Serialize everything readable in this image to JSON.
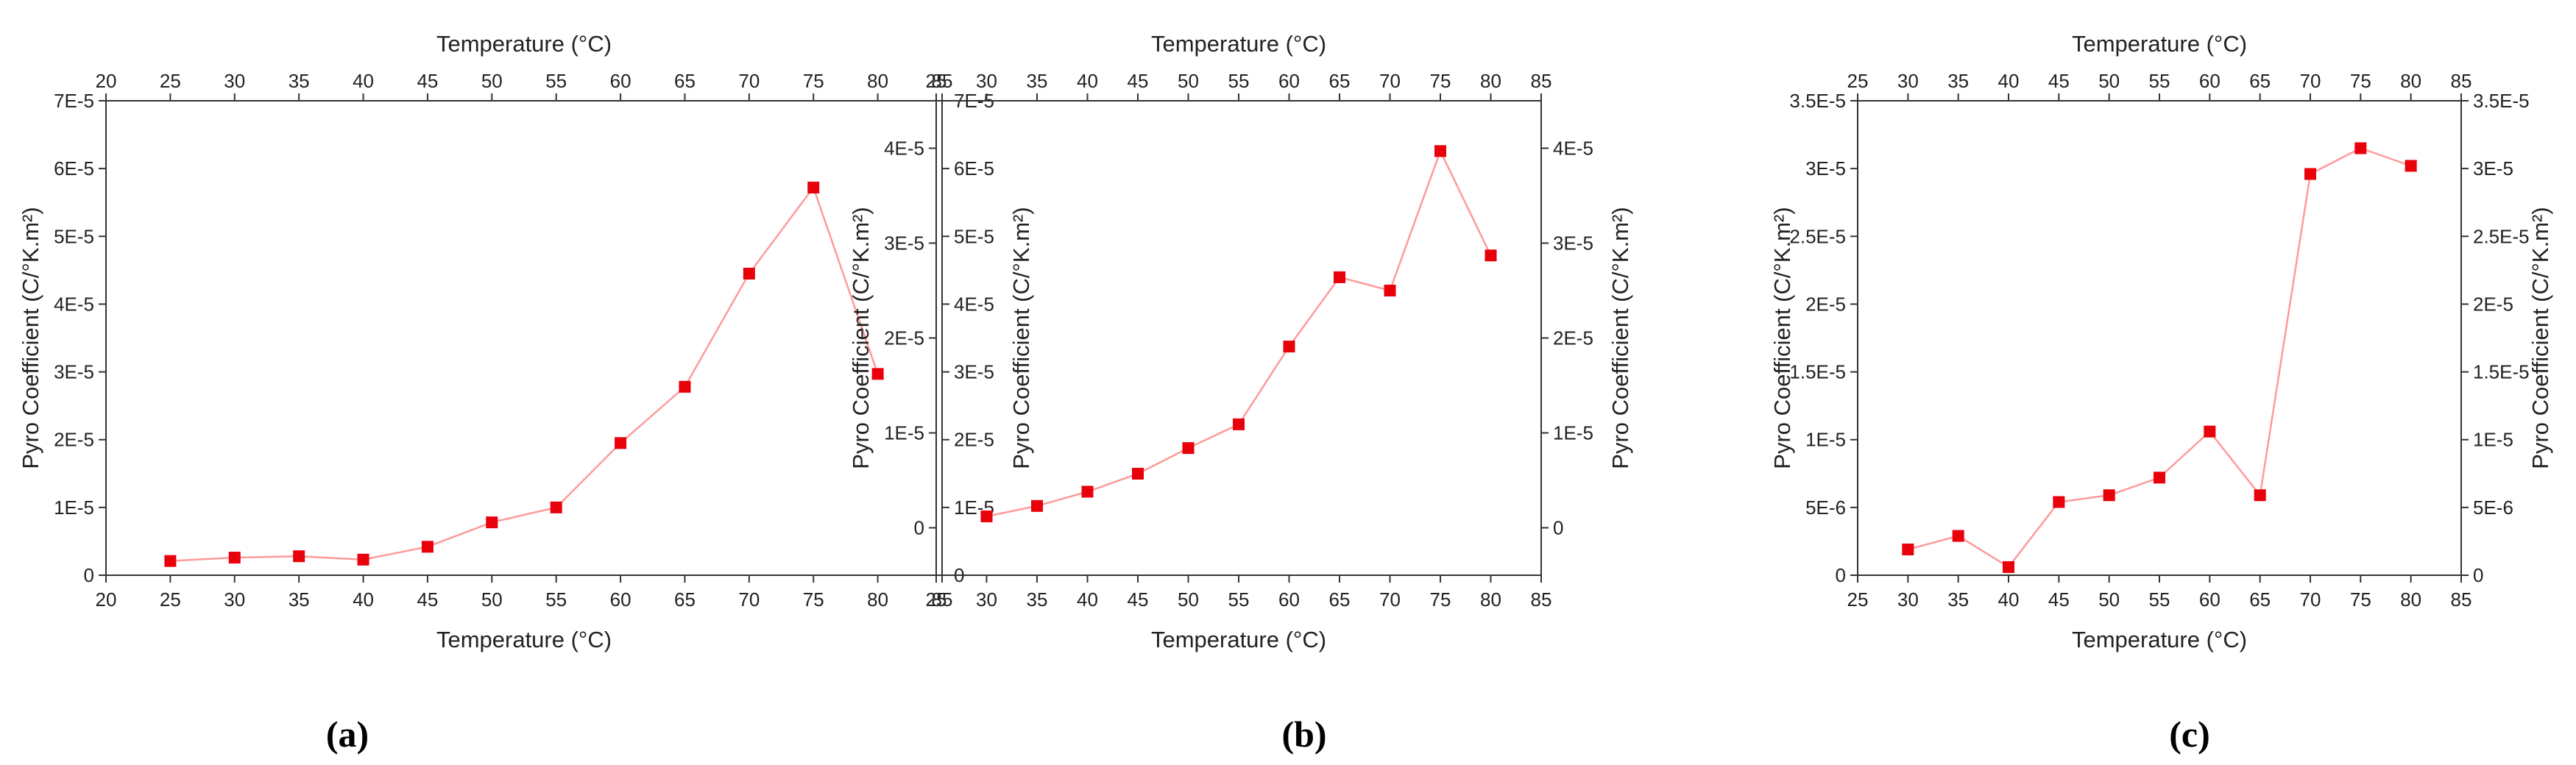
{
  "colors": {
    "series": "#e8000b",
    "line": "#ff9a9a",
    "axis": "#333333"
  },
  "chart_data": [
    {
      "type": "line",
      "panel_label": "(a)",
      "title": "",
      "xlabel": "Temperature (°C)",
      "x2label": "Temperature (°C)",
      "ylabel": "Pyro Coefficient (C/°K.m²)",
      "y2label": "Pyro Coefficient (C/°K.m²)",
      "xlim": [
        20,
        85
      ],
      "ylim": [
        0,
        7e-05
      ],
      "xticks": [
        "20",
        "25",
        "30",
        "35",
        "40",
        "45",
        "50",
        "55",
        "60",
        "65",
        "70",
        "75",
        "80",
        "85"
      ],
      "yticks": [
        "0",
        "1E-5",
        "2E-5",
        "3E-5",
        "4E-5",
        "5E-5",
        "6E-5",
        "7E-5"
      ],
      "series": [
        {
          "name": "Pyro Coefficient",
          "x": [
            25,
            30,
            35,
            40,
            45,
            50,
            55,
            60,
            65,
            70,
            75,
            80
          ],
          "y": [
            2.1e-06,
            2.6e-06,
            2.8e-06,
            2.3e-06,
            4.2e-06,
            7.8e-06,
            1e-05,
            1.95e-05,
            2.78e-05,
            4.45e-05,
            5.72e-05,
            2.97e-05
          ]
        }
      ]
    },
    {
      "type": "line",
      "panel_label": "(b)",
      "title": "",
      "xlabel": "Temperature (°C)",
      "x2label": "Temperature (°C)",
      "ylabel": "Pyro Coefficient (C/°K.m²)",
      "y2label": "Pyro Coefficient (C/°K.m²)",
      "xlim": [
        25,
        85
      ],
      "ylim": [
        -5e-06,
        4.5e-05
      ],
      "xticks": [
        "25",
        "30",
        "35",
        "40",
        "45",
        "50",
        "55",
        "60",
        "65",
        "70",
        "75",
        "80",
        "85"
      ],
      "yticks": [
        "0",
        "1E-5",
        "2E-5",
        "3E-5",
        "4E-5"
      ],
      "series": [
        {
          "name": "Pyro Coefficient",
          "x": [
            30,
            35,
            40,
            45,
            50,
            55,
            60,
            65,
            70,
            75,
            80
          ],
          "y": [
            1.2e-06,
            2.3e-06,
            3.8e-06,
            5.7e-06,
            8.4e-06,
            1.09e-05,
            1.91e-05,
            2.64e-05,
            2.5e-05,
            3.97e-05,
            2.87e-05
          ]
        }
      ]
    },
    {
      "type": "line",
      "panel_label": "(c)",
      "title": "",
      "xlabel": "Temperature (°C)",
      "x2label": "Temperature (°C)",
      "ylabel": "Pyro Coefficient (C/°K.m²)",
      "y2label": "Pyro Coefficient (C/°K.m²)",
      "xlim": [
        25,
        85
      ],
      "ylim": [
        0,
        3.5e-05
      ],
      "xticks": [
        "25",
        "30",
        "35",
        "40",
        "45",
        "50",
        "55",
        "60",
        "65",
        "70",
        "75",
        "80",
        "85"
      ],
      "yticks": [
        "0",
        "5E-6",
        "1E-5",
        "1.5E-5",
        "2E-5",
        "2.5E-5",
        "3E-5",
        "3.5E-5"
      ],
      "series": [
        {
          "name": "Pyro Coefficient",
          "x": [
            30,
            35,
            40,
            45,
            50,
            55,
            60,
            65,
            70,
            75,
            80
          ],
          "y": [
            1.9e-06,
            2.9e-06,
            6e-07,
            5.4e-06,
            5.9e-06,
            7.2e-06,
            1.06e-05,
            5.9e-06,
            2.96e-05,
            3.15e-05,
            3.02e-05
          ]
        }
      ]
    }
  ]
}
